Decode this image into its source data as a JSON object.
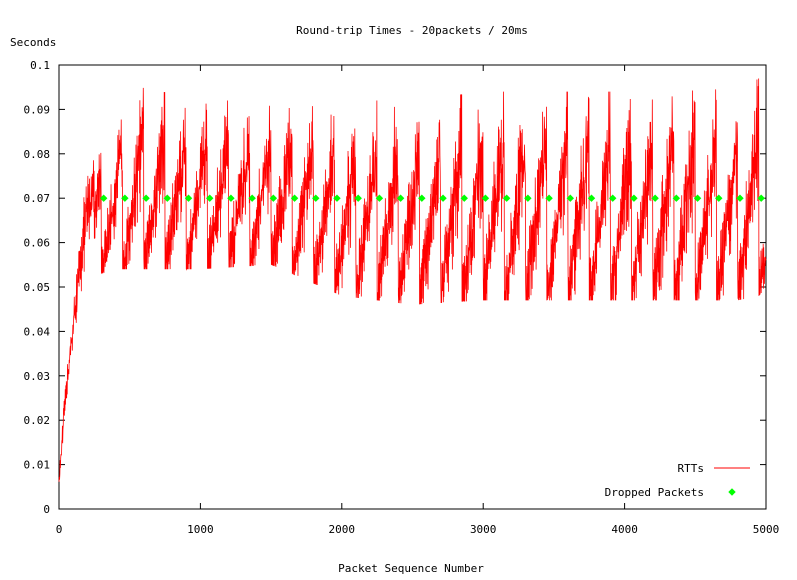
{
  "chart_data": {
    "type": "line",
    "title": "Round-trip Times - 20packets / 20ms",
    "xlabel": "Packet Sequence Number",
    "ylabel": "Seconds",
    "xlim": [
      0,
      5000
    ],
    "ylim": [
      0,
      0.1
    ],
    "x_ticks": [
      "0",
      "1000",
      "2000",
      "3000",
      "4000",
      "5000"
    ],
    "y_ticks": [
      "0",
      "0.01",
      "0.02",
      "0.03",
      "0.04",
      "0.05",
      "0.06",
      "0.07",
      "0.08",
      "0.09",
      "0.1"
    ],
    "grid": false,
    "legend_position": "bottom-right",
    "series": [
      {
        "name": "RTTs",
        "style": "line",
        "color": "#ff0000",
        "envelope": {
          "x": [
            0,
            50,
            100,
            150,
            200,
            250,
            300,
            400,
            600,
            1000,
            1500,
            2000,
            2500,
            3000,
            3500,
            4000,
            4500,
            4800,
            4950,
            5000
          ],
          "min": [
            0.003,
            0.02,
            0.03,
            0.04,
            0.048,
            0.052,
            0.053,
            0.054,
            0.054,
            0.054,
            0.055,
            0.048,
            0.046,
            0.047,
            0.047,
            0.047,
            0.047,
            0.047,
            0.048,
            0.05
          ],
          "max": [
            0.01,
            0.035,
            0.05,
            0.065,
            0.075,
            0.08,
            0.083,
            0.088,
            0.095,
            0.092,
            0.092,
            0.092,
            0.092,
            0.094,
            0.094,
            0.094,
            0.095,
            0.094,
            0.097,
            0.072
          ]
        },
        "sawtooth_period": 150
      },
      {
        "name": "Dropped Packets",
        "style": "points",
        "color": "#00ff00",
        "y_value": 0.07,
        "x": [
          316,
          466,
          616,
          766,
          916,
          1066,
          1216,
          1366,
          1516,
          1666,
          1816,
          1966,
          2116,
          2266,
          2416,
          2566,
          2716,
          2866,
          3016,
          3166,
          3316,
          3466,
          3616,
          3766,
          3916,
          4066,
          4216,
          4366,
          4516,
          4666,
          4816,
          4966
        ]
      }
    ]
  }
}
